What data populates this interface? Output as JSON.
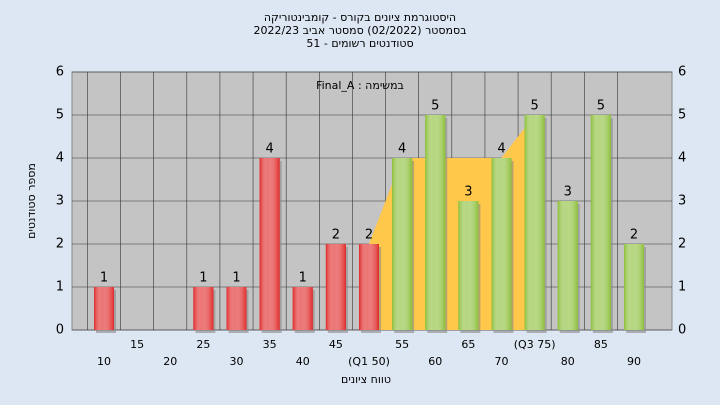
{
  "chart_data": {
    "type": "bar",
    "title": "היסטוגרמת ציונים בקורס - קומבינטוריקה",
    "subtitle": [
      "בסמסטר  (02/2022)  סמסטר אביב 2022/23",
      "סטודנטים רשומים - 51"
    ],
    "annotation": "Final_A : במשימה",
    "x_label": "טווח ציונים",
    "y_label": "מספר סטודנטים",
    "categories": [
      "10",
      "15",
      "20",
      "25",
      "30",
      "35",
      "40",
      "45",
      "(Q1 50)",
      "55",
      "60",
      "65",
      "70",
      "(Q3 75)",
      "80",
      "85",
      "90"
    ],
    "values": [
      1,
      0,
      0,
      1,
      1,
      4,
      1,
      2,
      2,
      4,
      5,
      3,
      4,
      5,
      3,
      5,
      2
    ],
    "colors": [
      "#e02828",
      "#e02828",
      "#e02828",
      "#e02828",
      "#e02828",
      "#e02828",
      "#e02828",
      "#e02828",
      "#e02828",
      "#8cbf3a",
      "#8cbf3a",
      "#8cbf3a",
      "#8cbf3a",
      "#8cbf3a",
      "#8cbf3a",
      "#8cbf3a",
      "#8cbf3a"
    ],
    "area": {
      "x": [
        50,
        55,
        70,
        75
      ],
      "values": [
        2,
        4,
        4,
        5
      ],
      "color": "#ffc84a"
    },
    "ylim": [
      0,
      6
    ],
    "yticks": [
      0,
      1,
      2,
      3,
      4,
      5,
      6
    ],
    "grid": true
  }
}
